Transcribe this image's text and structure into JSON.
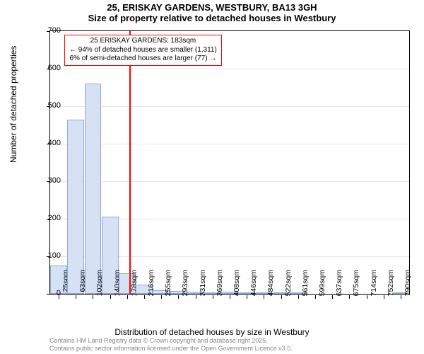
{
  "title": "25, ERISKAY GARDENS, WESTBURY, BA13 3GH",
  "subtitle": "Size of property relative to detached houses in Westbury",
  "y_label": "Number of detached properties",
  "x_label": "Distribution of detached houses by size in Westbury",
  "chart": {
    "type": "histogram",
    "ylim": [
      0,
      700
    ],
    "ytick_step": 100,
    "bar_fill": "#d6e1f4",
    "bar_stroke": "#8faadc",
    "grid_color": "#e6e6e6",
    "background_color": "#ffffff",
    "x_categories": [
      "25sqm",
      "63sqm",
      "102sqm",
      "140sqm",
      "178sqm",
      "216sqm",
      "255sqm",
      "293sqm",
      "331sqm",
      "369sqm",
      "408sqm",
      "446sqm",
      "484sqm",
      "522sqm",
      "561sqm",
      "599sqm",
      "637sqm",
      "675sqm",
      "714sqm",
      "752sqm",
      "790sqm"
    ],
    "values": [
      75,
      465,
      560,
      205,
      55,
      25,
      10,
      8,
      5,
      4,
      5,
      4,
      2,
      1,
      1,
      0,
      0,
      0,
      0,
      0,
      1
    ],
    "reference_line": {
      "x_value_sqm": 183,
      "color": "#ff0000",
      "width": 2
    },
    "annotation": {
      "lines": [
        "25 ERISKAY GARDENS: 183sqm",
        "← 94% of detached houses are smaller (1,311)",
        "6% of semi-detached houses are larger (77) →"
      ],
      "border_color": "#ff0000",
      "background_color": "#ffffff",
      "font_size": 10
    }
  },
  "footer": {
    "line1": "Contains HM Land Registry data © Crown copyright and database right 2025.",
    "line2": "Contains public sector information licensed under the Open Government Licence v3.0."
  },
  "colors": {
    "text": "#000000",
    "footer_text": "#888888"
  }
}
